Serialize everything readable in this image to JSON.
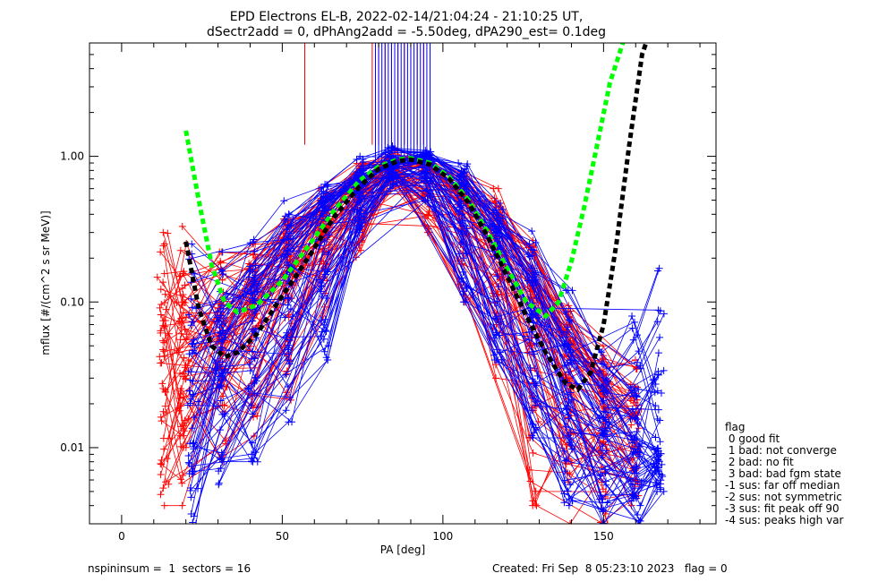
{
  "title_line1": "EPD Electrons EL-B, 2022-02-14/21:04:24 - 21:10:25 UT,",
  "title_line2": "dSectr2add = 0, dPhAng2add = -5.50deg, dPA290_est=   0.1deg",
  "footer": {
    "left": "nspininsum =  1  sectors = 16",
    "right": "Created: Fri Sep  8 05:23:10 2023   flag = 0"
  },
  "legend": {
    "title": "flag",
    "items": [
      " 0 good fit",
      " 1 bad: not converge",
      " 2 bad: no fit",
      " 3 bad: bad fgm state",
      "-1 sus: far off median",
      "-2 sus: not symmetric",
      "-3 sus: fit peak off 90",
      "-4 sus: peaks high var"
    ]
  },
  "colors": {
    "red_series": "#ff0000",
    "blue_series": "#0000ff",
    "green_fit": "#00ff00",
    "black_fit": "#000000"
  },
  "chart_data": {
    "type": "line",
    "xlabel": "PA [deg]",
    "ylabel": "mflux [#/(cm^2 s sr MeV)]",
    "xlim": [
      -10,
      185
    ],
    "ylim": [
      0.003,
      6
    ],
    "yscale": "log",
    "xticks": [
      0,
      50,
      100,
      150
    ],
    "xtick_labels": [
      "0",
      "50",
      "100",
      "150"
    ],
    "yticks": [
      0.01,
      0.1,
      1.0
    ],
    "ytick_labels": [
      "0.01",
      "0.10",
      "1.00"
    ],
    "pa_bins": [
      13,
      19,
      22,
      31,
      41,
      52,
      63,
      74,
      84,
      95,
      106,
      117,
      128,
      139,
      150,
      160,
      167
    ],
    "series": [
      {
        "color_key": "red_series",
        "count": 70,
        "median_pa": [
          13,
          19,
          31,
          41,
          52,
          63,
          74,
          84,
          95,
          106,
          117,
          128,
          139,
          150,
          160
        ],
        "median_flux": [
          0.05,
          0.04,
          0.05,
          0.08,
          0.17,
          0.3,
          0.55,
          0.85,
          0.85,
          0.5,
          0.25,
          0.1,
          0.04,
          0.018,
          0.012
        ],
        "spread_flux": [
          [
            0.004,
            0.3
          ],
          [
            0.004,
            0.33
          ],
          [
            0.008,
            0.22
          ],
          [
            0.012,
            0.25
          ],
          [
            0.02,
            0.4
          ],
          [
            0.08,
            0.6
          ],
          [
            0.2,
            1.0
          ],
          [
            0.6,
            1.1
          ],
          [
            0.3,
            1.0
          ],
          [
            0.1,
            0.8
          ],
          [
            0.03,
            0.6
          ],
          [
            0.004,
            0.3
          ],
          [
            0.003,
            0.1
          ],
          [
            0.003,
            0.05
          ],
          [
            0.004,
            0.04
          ]
        ]
      },
      {
        "color_key": "blue_series",
        "count": 70,
        "median_pa": [
          22,
          31,
          41,
          52,
          63,
          74,
          84,
          95,
          106,
          117,
          128,
          139,
          150,
          160,
          167
        ],
        "median_flux": [
          0.035,
          0.05,
          0.1,
          0.2,
          0.38,
          0.65,
          0.9,
          0.9,
          0.6,
          0.28,
          0.09,
          0.035,
          0.018,
          0.012,
          0.01
        ],
        "spread_flux": [
          [
            0.003,
            0.25
          ],
          [
            0.005,
            0.22
          ],
          [
            0.008,
            0.3
          ],
          [
            0.015,
            0.5
          ],
          [
            0.04,
            0.7
          ],
          [
            0.3,
            1.0
          ],
          [
            0.6,
            1.2
          ],
          [
            0.5,
            1.1
          ],
          [
            0.1,
            0.9
          ],
          [
            0.04,
            0.6
          ],
          [
            0.008,
            0.35
          ],
          [
            0.004,
            0.12
          ],
          [
            0.003,
            0.06
          ],
          [
            0.003,
            0.08
          ],
          [
            0.005,
            0.17
          ]
        ]
      },
      {
        "color_key": "green_fit",
        "style": "dashed",
        "x": [
          20,
          24,
          28,
          32,
          36,
          42,
          50,
          58,
          66,
          74,
          80,
          86,
          90,
          96,
          102,
          108,
          114,
          120,
          126,
          132,
          136,
          140,
          144,
          148,
          152,
          156,
          158
        ],
        "y": [
          1.5,
          0.5,
          0.18,
          0.1,
          0.085,
          0.095,
          0.14,
          0.24,
          0.42,
          0.68,
          0.85,
          0.95,
          0.97,
          0.9,
          0.72,
          0.5,
          0.3,
          0.17,
          0.1,
          0.08,
          0.1,
          0.19,
          0.45,
          1.2,
          3.2,
          6,
          8
        ]
      },
      {
        "color_key": "black_fit",
        "style": "dashed",
        "x": [
          20,
          24,
          28,
          32,
          36,
          42,
          50,
          58,
          66,
          74,
          80,
          86,
          90,
          96,
          102,
          108,
          114,
          120,
          126,
          132,
          138,
          142,
          146,
          150,
          154,
          158,
          162,
          166
        ],
        "y": [
          0.26,
          0.09,
          0.05,
          0.042,
          0.045,
          0.06,
          0.11,
          0.2,
          0.38,
          0.62,
          0.82,
          0.93,
          0.95,
          0.88,
          0.7,
          0.48,
          0.28,
          0.15,
          0.08,
          0.045,
          0.028,
          0.025,
          0.033,
          0.07,
          0.25,
          1.2,
          5,
          9
        ]
      }
    ],
    "spikes": [
      {
        "color_key": "red_series",
        "pa": [
          57,
          78,
          80,
          82,
          84,
          86,
          88,
          90,
          92,
          94,
          96
        ],
        "from": 1.2,
        "to": 6
      },
      {
        "color_key": "blue_series",
        "pa": [
          79,
          80,
          81,
          82,
          83,
          84,
          85,
          86,
          87,
          88,
          89,
          90,
          91,
          92,
          93,
          94,
          95,
          96
        ],
        "from": 0.9,
        "to": 6
      }
    ]
  }
}
